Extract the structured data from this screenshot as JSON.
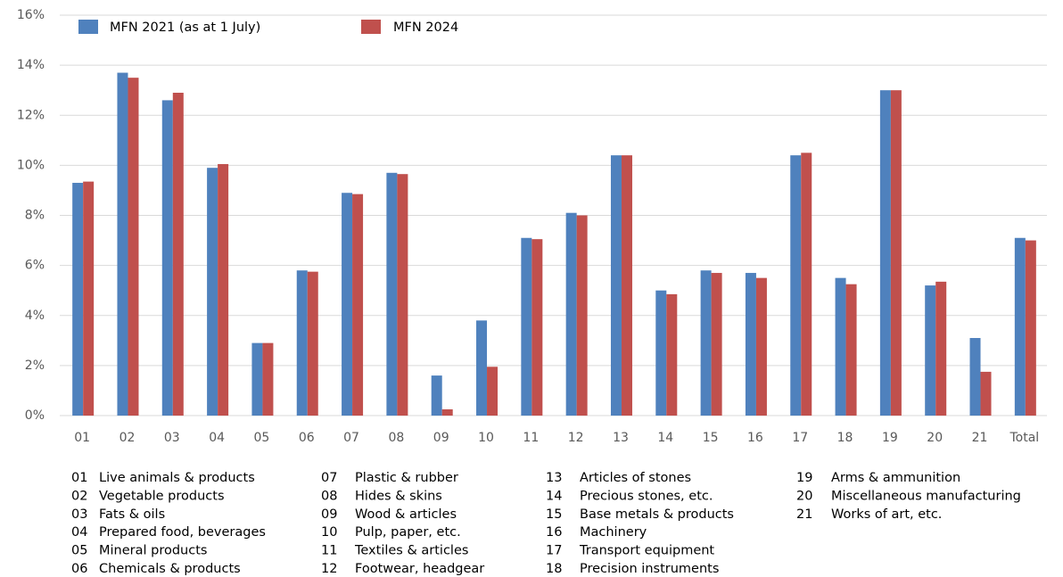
{
  "chart_data": {
    "type": "bar",
    "categories": [
      "01",
      "02",
      "03",
      "04",
      "05",
      "06",
      "07",
      "08",
      "09",
      "10",
      "11",
      "12",
      "13",
      "14",
      "15",
      "16",
      "17",
      "18",
      "19",
      "20",
      "21",
      "Total"
    ],
    "series": [
      {
        "name": "MFN 2021 (as at 1 July)",
        "color": "#4f81bd",
        "values": [
          9.3,
          13.7,
          12.6,
          9.9,
          2.9,
          5.8,
          8.9,
          9.7,
          1.6,
          3.8,
          7.1,
          8.1,
          10.4,
          5.0,
          5.8,
          5.7,
          10.4,
          5.5,
          13.0,
          5.2,
          3.1,
          7.1
        ]
      },
      {
        "name": "MFN 2024",
        "color": "#c0504d",
        "values": [
          9.35,
          13.5,
          12.9,
          10.05,
          2.9,
          5.75,
          8.85,
          9.65,
          0.25,
          1.95,
          7.05,
          8.0,
          10.4,
          4.85,
          5.7,
          5.5,
          10.5,
          5.25,
          13.0,
          5.35,
          1.75,
          7.0
        ]
      }
    ],
    "ylim": [
      0,
      16
    ],
    "yticks": [
      {
        "value": 0,
        "label": "0%"
      },
      {
        "value": 2,
        "label": "2%"
      },
      {
        "value": 4,
        "label": "4%"
      },
      {
        "value": 6,
        "label": "6%"
      },
      {
        "value": 8,
        "label": "8%"
      },
      {
        "value": 10,
        "label": "10%"
      },
      {
        "value": 12,
        "label": "12%"
      },
      {
        "value": 14,
        "label": "14%"
      },
      {
        "value": 16,
        "label": "16%"
      }
    ],
    "grid": true,
    "legend": "top-left",
    "notes": [
      {
        "code": "01",
        "label": "Live animals & products"
      },
      {
        "code": "02",
        "label": "Vegetable products"
      },
      {
        "code": "03",
        "label": "Fats & oils"
      },
      {
        "code": "04",
        "label": "Prepared food, beverages"
      },
      {
        "code": "05",
        "label": "Mineral products"
      },
      {
        "code": "06",
        "label": "Chemicals & products"
      },
      {
        "code": "07",
        "label": "Plastic & rubber"
      },
      {
        "code": "08",
        "label": "Hides & skins"
      },
      {
        "code": "09",
        "label": "Wood & articles"
      },
      {
        "code": "10",
        "label": "Pulp, paper, etc."
      },
      {
        "code": "11",
        "label": "Textiles & articles"
      },
      {
        "code": "12",
        "label": "Footwear, headgear"
      },
      {
        "code": "13",
        "label": "Articles of stones"
      },
      {
        "code": "14",
        "label": "Precious stones, etc."
      },
      {
        "code": "15",
        "label": "Base metals & products"
      },
      {
        "code": "16",
        "label": "Machinery"
      },
      {
        "code": "17",
        "label": "Transport equipment"
      },
      {
        "code": "18",
        "label": "Precision instruments"
      },
      {
        "code": "19",
        "label": "Arms & ammunition"
      },
      {
        "code": "20",
        "label": "Miscellaneous manufacturing"
      },
      {
        "code": "21",
        "label": "Works of art, etc."
      }
    ]
  }
}
